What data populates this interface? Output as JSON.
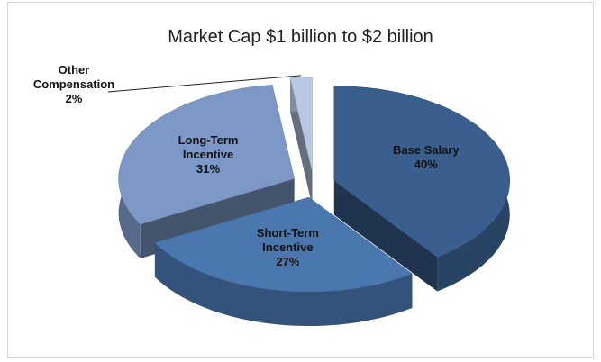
{
  "chart_data": {
    "type": "pie3d",
    "title": "Market Cap $1 billion to $2 billion",
    "categories": [
      "Base Salary",
      "Short-Term Incentive",
      "Long-Term Incentive",
      "Other Compensation"
    ],
    "values": [
      40,
      27,
      31,
      2
    ],
    "value_labels": [
      "40%",
      "27%",
      "31%",
      "2%"
    ],
    "colors": [
      "#3a5f8f",
      "#4a77ae",
      "#7d98c6",
      "#b8c8e3"
    ]
  }
}
